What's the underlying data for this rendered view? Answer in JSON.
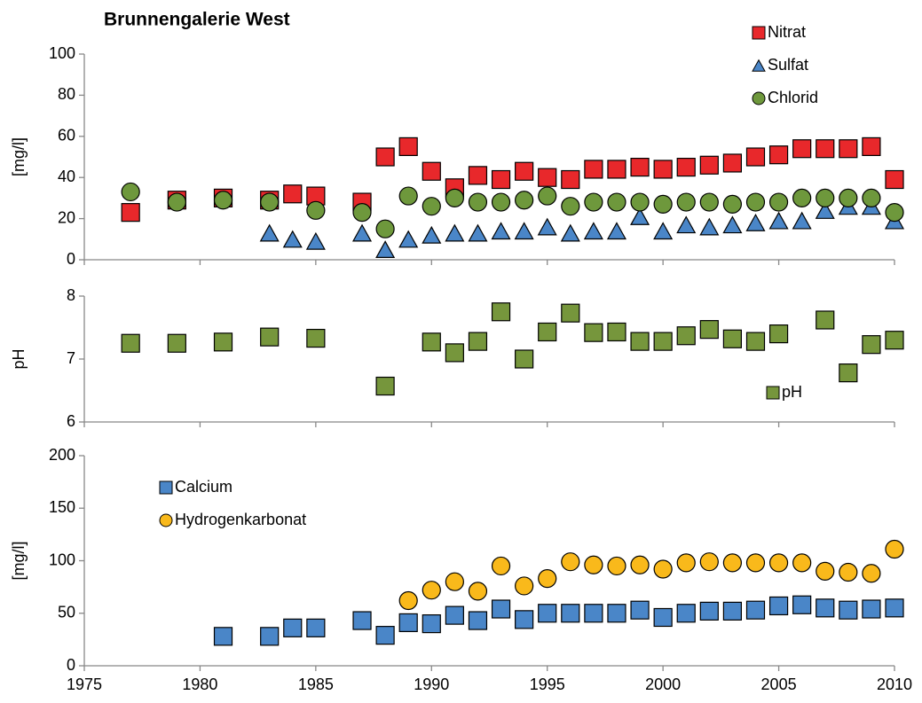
{
  "chart_data": [
    {
      "type": "scatter",
      "title": "Brunnengalerie West",
      "y_label": "[mg/l]",
      "xlim": [
        1975,
        2010
      ],
      "ylim": [
        0,
        100
      ],
      "yticks": [
        0,
        20,
        40,
        60,
        80,
        100
      ],
      "legend": "top right",
      "x": [
        1977,
        1979,
        1981,
        1983,
        1984,
        1985,
        1987,
        1988,
        1989,
        1990,
        1991,
        1992,
        1993,
        1994,
        1995,
        1996,
        1997,
        1998,
        1999,
        2000,
        2001,
        2002,
        2003,
        2004,
        2005,
        2006,
        2007,
        2008,
        2009,
        2010
      ],
      "series": [
        {
          "name": "Nitrat",
          "color": "#e8282b",
          "marker": "square",
          "values": [
            23,
            29,
            30,
            29,
            32,
            31,
            28,
            50,
            55,
            43,
            35,
            41,
            39,
            43,
            40,
            39,
            44,
            44,
            45,
            44,
            45,
            46,
            47,
            50,
            51,
            54,
            54,
            54,
            55,
            39
          ]
        },
        {
          "name": "Sulfat",
          "color": "#4a86c8",
          "marker": "triangle",
          "values": [
            null,
            null,
            null,
            13,
            10,
            9,
            13,
            5,
            10,
            12,
            13,
            13,
            14,
            14,
            16,
            13,
            14,
            14,
            21,
            14,
            17,
            16,
            17,
            18,
            19,
            19,
            24,
            26,
            26,
            19
          ]
        },
        {
          "name": "Chlorid",
          "color": "#6e983c",
          "marker": "circle",
          "values": [
            33,
            28,
            29,
            28,
            null,
            24,
            23,
            15,
            31,
            26,
            30,
            28,
            28,
            29,
            31,
            26,
            28,
            28,
            28,
            27,
            28,
            28,
            27,
            28,
            28,
            30,
            30,
            30,
            30,
            23
          ]
        }
      ]
    },
    {
      "type": "scatter",
      "y_label": "pH",
      "xlim": [
        1975,
        2010
      ],
      "ylim": [
        6,
        8
      ],
      "yticks": [
        6,
        7,
        8
      ],
      "legend": "lower right",
      "x": [
        1977,
        1979,
        1981,
        1983,
        1985,
        1988,
        1990,
        1991,
        1992,
        1993,
        1994,
        1995,
        1996,
        1997,
        1998,
        1999,
        2000,
        2001,
        2002,
        2003,
        2004,
        2005,
        2007,
        2008,
        2009,
        2010
      ],
      "series": [
        {
          "name": "pH",
          "color": "#76963c",
          "marker": "square",
          "values": [
            7.25,
            7.25,
            7.27,
            7.35,
            7.33,
            6.57,
            7.27,
            7.1,
            7.28,
            7.75,
            7.0,
            7.43,
            7.73,
            7.42,
            7.43,
            7.28,
            7.28,
            7.37,
            7.47,
            7.32,
            7.28,
            7.4,
            7.62,
            6.78,
            7.23,
            7.3
          ]
        }
      ]
    },
    {
      "type": "scatter",
      "y_label": "[mg/l]",
      "xlim": [
        1975,
        2010
      ],
      "ylim": [
        0,
        200
      ],
      "yticks": [
        0,
        50,
        100,
        150,
        200
      ],
      "xticks": [
        1975,
        1980,
        1985,
        1990,
        1995,
        2000,
        2005,
        2010
      ],
      "legend": "top left",
      "x": [
        1981,
        1983,
        1984,
        1985,
        1987,
        1988,
        1989,
        1990,
        1991,
        1992,
        1993,
        1994,
        1995,
        1996,
        1997,
        1998,
        1999,
        2000,
        2001,
        2002,
        2003,
        2004,
        2005,
        2006,
        2007,
        2008,
        2009,
        2010
      ],
      "series": [
        {
          "name": "Calcium",
          "color": "#4a86c8",
          "marker": "square",
          "values": [
            28,
            28,
            36,
            36,
            43,
            29,
            41,
            40,
            48,
            43,
            54,
            44,
            50,
            50,
            50,
            50,
            53,
            46,
            50,
            52,
            52,
            53,
            57,
            58,
            55,
            53,
            54,
            55
          ]
        },
        {
          "name": "Hydrogenkarbonat",
          "color": "#f9b91b",
          "marker": "circle",
          "values": [
            null,
            null,
            null,
            null,
            null,
            null,
            62,
            72,
            80,
            71,
            95,
            76,
            83,
            99,
            96,
            95,
            96,
            92,
            98,
            99,
            98,
            98,
            98,
            98,
            90,
            89,
            88,
            111
          ]
        }
      ]
    }
  ]
}
